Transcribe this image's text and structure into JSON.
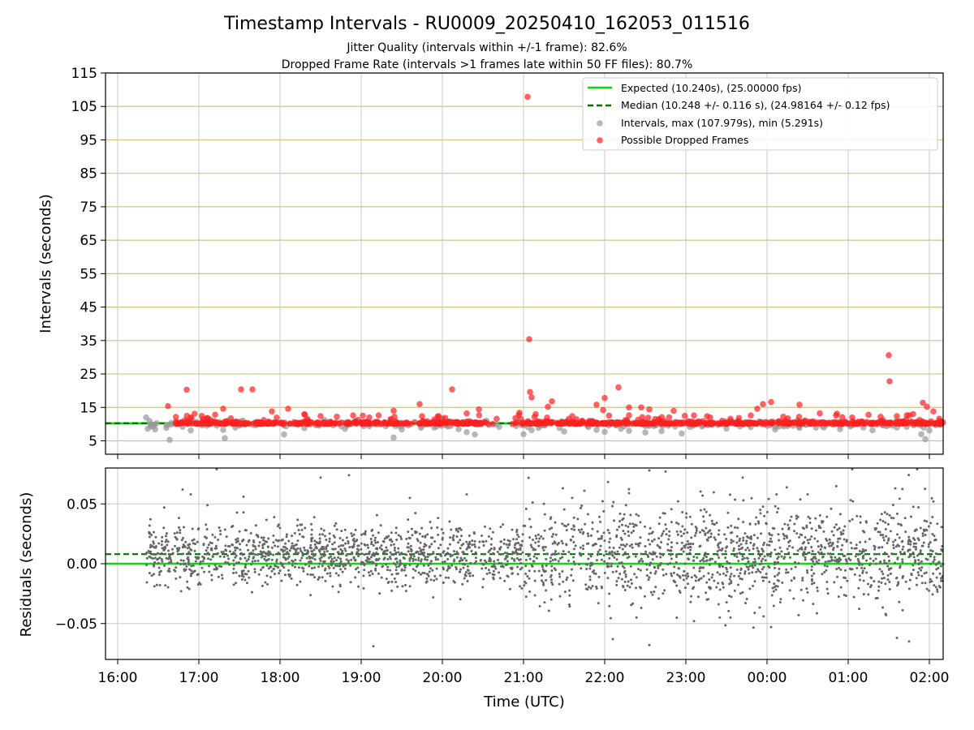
{
  "chart_data": [
    {
      "id": "intervals",
      "type": "scatter",
      "title": "Timestamp Intervals - RU0009_20250410_162053_011516",
      "subtitle": "Jitter Quality (intervals within +/-1 frame): 82.6%",
      "subtitle2": "Dropped Frame Rate (intervals >1 frames late within 50 FF files): 80.7%",
      "ylabel": "Intervals (seconds)",
      "xlabel": "",
      "xlim": [
        15.85,
        26.17
      ],
      "ylim": [
        1.0,
        115
      ],
      "yticks": [
        5,
        15,
        25,
        35,
        45,
        55,
        65,
        75,
        85,
        95,
        105,
        115
      ],
      "xticks": [
        16,
        17,
        18,
        19,
        20,
        21,
        22,
        23,
        24,
        25,
        26
      ],
      "grid": true,
      "legend_position": "top-right",
      "colors": {
        "expected": "#00e000",
        "median": "#007800",
        "intervals": "#999999",
        "dropped": "#ff2020",
        "ygrid": "#d2c27e",
        "xgrid": "#c8c8c8"
      },
      "reference_lines": {
        "expected": 10.24,
        "median": 10.248
      },
      "legend": [
        {
          "key": "expected",
          "label": "Expected (10.240s), (25.00000 fps)"
        },
        {
          "key": "median",
          "label": "Median (10.248 +/- 0.116 s), (24.98164 +/- 0.12 fps)"
        },
        {
          "key": "intervals",
          "label": "Intervals, max (107.979s), min (5.291s)"
        },
        {
          "key": "dropped",
          "label": "Possible Dropped Frames"
        }
      ],
      "series": [
        {
          "name": "Intervals, max (107.979s), min (5.291s)",
          "points": [
            [
              16.35,
              12.0
            ],
            [
              16.37,
              8.6
            ],
            [
              16.45,
              9.8
            ],
            [
              16.6,
              8.9
            ],
            [
              16.64,
              5.3
            ],
            [
              16.8,
              9.2
            ],
            [
              16.9,
              8.1
            ],
            [
              17.1,
              9.5
            ],
            [
              17.3,
              8.3
            ],
            [
              17.32,
              5.8
            ],
            [
              17.45,
              9.0
            ],
            [
              17.7,
              9.6
            ],
            [
              18.05,
              6.9
            ],
            [
              18.3,
              8.8
            ],
            [
              18.8,
              8.6
            ],
            [
              19.1,
              9.4
            ],
            [
              19.4,
              6.0
            ],
            [
              19.5,
              8.4
            ],
            [
              19.9,
              9.0
            ],
            [
              20.2,
              8.5
            ],
            [
              20.3,
              7.6
            ],
            [
              20.4,
              6.9
            ],
            [
              20.7,
              9.2
            ],
            [
              21.0,
              7.0
            ],
            [
              21.1,
              8.2
            ],
            [
              21.5,
              7.8
            ],
            [
              21.8,
              9.1
            ],
            [
              21.9,
              8.3
            ],
            [
              22.0,
              7.7
            ],
            [
              22.2,
              8.6
            ],
            [
              22.3,
              8.0
            ],
            [
              22.5,
              7.5
            ],
            [
              22.7,
              7.9
            ],
            [
              22.95,
              7.2
            ],
            [
              23.2,
              9.3
            ],
            [
              23.5,
              8.7
            ],
            [
              23.8,
              9.1
            ],
            [
              24.1,
              8.4
            ],
            [
              24.4,
              8.9
            ],
            [
              24.7,
              9.0
            ],
            [
              24.9,
              8.5
            ],
            [
              25.3,
              8.2
            ],
            [
              25.6,
              9.0
            ],
            [
              25.9,
              7.0
            ],
            [
              25.95,
              5.5
            ],
            [
              26.0,
              8.1
            ]
          ]
        },
        {
          "name": "Possible Dropped Frames",
          "points": [
            [
              16.62,
              15.4
            ],
            [
              16.85,
              20.3
            ],
            [
              16.9,
              12.0
            ],
            [
              17.05,
              11.5
            ],
            [
              17.2,
              12.8
            ],
            [
              17.3,
              14.6
            ],
            [
              17.52,
              20.4
            ],
            [
              17.66,
              20.4
            ],
            [
              17.8,
              11.2
            ],
            [
              17.9,
              13.8
            ],
            [
              18.1,
              14.6
            ],
            [
              18.3,
              13.0
            ],
            [
              18.5,
              12.4
            ],
            [
              18.7,
              12.2
            ],
            [
              18.9,
              12.6
            ],
            [
              19.1,
              12.0
            ],
            [
              19.4,
              14.0
            ],
            [
              19.72,
              16.0
            ],
            [
              20.0,
              11.6
            ],
            [
              20.12,
              20.4
            ],
            [
              20.3,
              13.2
            ],
            [
              20.45,
              14.4
            ],
            [
              20.9,
              11.8
            ],
            [
              20.95,
              13.4
            ],
            [
              21.05,
              107.9
            ],
            [
              21.07,
              35.4
            ],
            [
              21.08,
              19.6
            ],
            [
              21.1,
              18.0
            ],
            [
              21.15,
              13.0
            ],
            [
              21.3,
              15.2
            ],
            [
              21.35,
              16.8
            ],
            [
              21.6,
              12.4
            ],
            [
              21.9,
              15.8
            ],
            [
              21.98,
              14.2
            ],
            [
              22.0,
              17.8
            ],
            [
              22.17,
              21.0
            ],
            [
              22.3,
              15.0
            ],
            [
              22.45,
              15.0
            ],
            [
              22.55,
              14.4
            ],
            [
              22.85,
              14.0
            ],
            [
              23.1,
              12.6
            ],
            [
              23.3,
              12.0
            ],
            [
              23.55,
              11.6
            ],
            [
              23.8,
              12.6
            ],
            [
              23.88,
              14.6
            ],
            [
              23.95,
              16.0
            ],
            [
              24.05,
              16.6
            ],
            [
              24.2,
              12.2
            ],
            [
              24.4,
              15.8
            ],
            [
              24.65,
              13.2
            ],
            [
              24.85,
              12.6
            ],
            [
              25.05,
              12.0
            ],
            [
              25.25,
              12.8
            ],
            [
              25.4,
              12.2
            ],
            [
              25.5,
              30.6
            ],
            [
              25.51,
              22.8
            ],
            [
              25.6,
              12.4
            ],
            [
              25.8,
              13.0
            ],
            [
              25.92,
              16.4
            ],
            [
              25.97,
              15.2
            ],
            [
              26.05,
              13.8
            ]
          ]
        }
      ]
    },
    {
      "id": "residuals",
      "type": "scatter",
      "title": "",
      "ylabel": "Residuals (seconds)",
      "xlabel": "Time (UTC)",
      "xlim": [
        15.85,
        26.17
      ],
      "ylim": [
        -0.08,
        0.08
      ],
      "yticks": [
        -0.05,
        0.0,
        0.05
      ],
      "ytick_labels": [
        "−0.05",
        "0.00",
        "0.05"
      ],
      "xticks": [
        16,
        17,
        18,
        19,
        20,
        21,
        22,
        23,
        24,
        25,
        26
      ],
      "xtick_labels": [
        "16:00",
        "17:00",
        "18:00",
        "19:00",
        "20:00",
        "21:00",
        "22:00",
        "23:00",
        "00:00",
        "01:00",
        "02:00"
      ],
      "grid": true,
      "reference_lines": {
        "expected": 0.0,
        "median": 0.008
      },
      "series": [
        {
          "name": "",
          "description_density": "dense band of residuals, approx std 0.012 to 0.022 s",
          "start": 16.35,
          "end": 26.17,
          "mean": 0.008,
          "outliers": [
            [
              16.8,
              0.062
            ],
            [
              16.9,
              0.058
            ],
            [
              17.22,
              0.079
            ],
            [
              17.55,
              0.056
            ],
            [
              18.5,
              0.072
            ],
            [
              18.85,
              0.074
            ],
            [
              19.15,
              -0.069
            ],
            [
              19.6,
              0.055
            ],
            [
              20.3,
              0.058
            ],
            [
              21.6,
              0.055
            ],
            [
              21.75,
              0.061
            ],
            [
              22.1,
              -0.063
            ],
            [
              22.3,
              0.059
            ],
            [
              22.55,
              -0.068
            ],
            [
              22.55,
              0.078
            ],
            [
              22.75,
              0.077
            ],
            [
              23.1,
              -0.048
            ],
            [
              23.55,
              -0.045
            ],
            [
              23.7,
              0.072
            ],
            [
              24.05,
              -0.053
            ],
            [
              24.5,
              0.058
            ],
            [
              25.05,
              0.079
            ],
            [
              25.6,
              -0.062
            ],
            [
              25.75,
              -0.065
            ],
            [
              25.58,
              0.063
            ],
            [
              25.85,
              0.079
            ],
            [
              26.05,
              0.052
            ]
          ]
        }
      ]
    }
  ]
}
